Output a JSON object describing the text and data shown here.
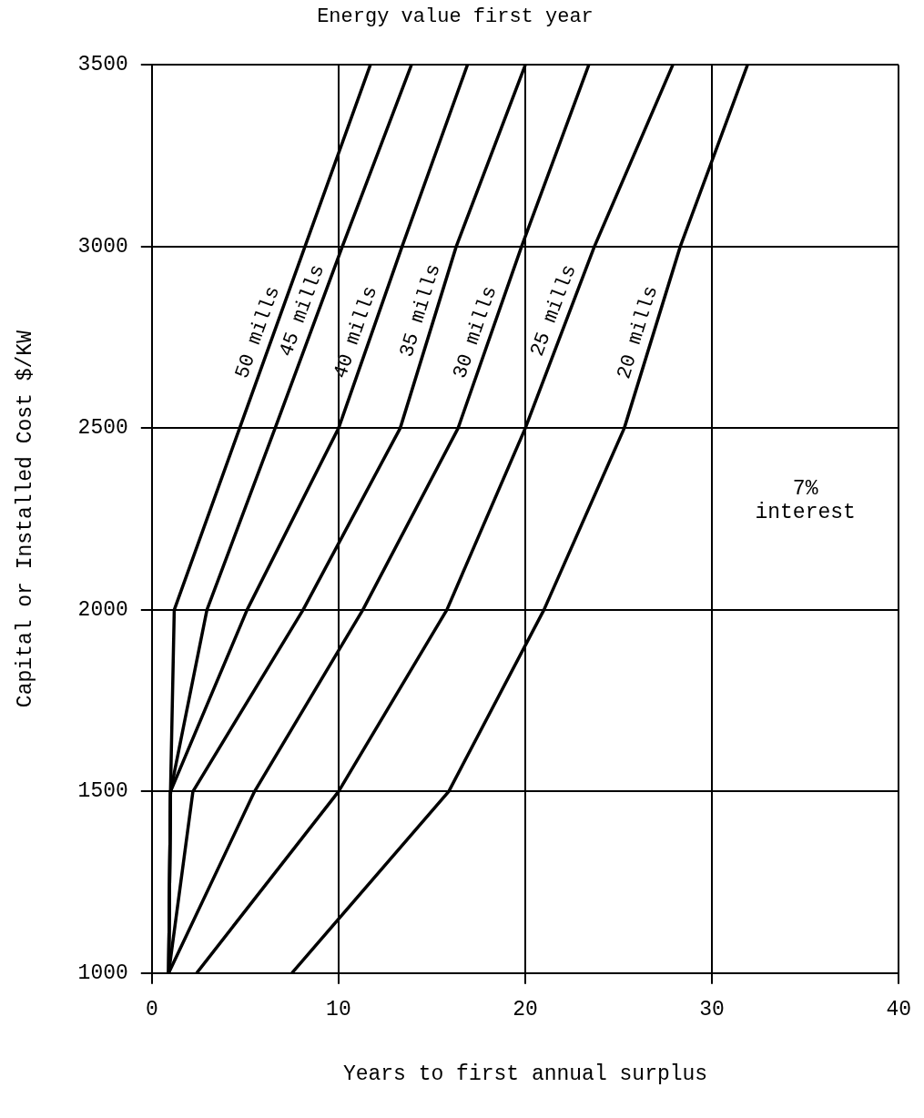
{
  "chart_data": {
    "type": "line",
    "title": "Energy value first year",
    "xlabel": "Years to first annual surplus",
    "ylabel": "Capital or Installed Cost $/KW",
    "xlim": [
      0,
      40
    ],
    "xticks": [
      0,
      10,
      20,
      30,
      40
    ],
    "ylim": [
      1000,
      3500
    ],
    "yticks": [
      1000,
      1500,
      2000,
      2500,
      3000,
      3500
    ],
    "grid": true,
    "legend": false,
    "marker": "none",
    "line_style": "solid",
    "annotations": [
      "7%\ninterest"
    ],
    "series": [
      {
        "name": "50 mills",
        "color": "#000000",
        "x": [
          0.9,
          1.0,
          1.2,
          4.7,
          8.2,
          11.7
        ],
        "values": [
          1000,
          1500,
          2000,
          2500,
          3000,
          3500
        ]
      },
      {
        "name": "45 mills",
        "color": "#000000",
        "x": [
          0.9,
          1.0,
          2.95,
          6.6,
          10.2,
          13.9
        ],
        "values": [
          1000,
          1500,
          2000,
          2500,
          3000,
          3500
        ]
      },
      {
        "name": "40 mills",
        "color": "#000000",
        "x": [
          0.9,
          1.0,
          5.1,
          10.0,
          13.4,
          16.9
        ],
        "values": [
          1000,
          1500,
          2000,
          2500,
          3000,
          3500
        ]
      },
      {
        "name": "35 mills",
        "color": "#000000",
        "x": [
          0.9,
          2.2,
          8.1,
          13.3,
          16.3,
          20.0
        ],
        "values": [
          1000,
          1500,
          2000,
          2500,
          3000,
          3500
        ]
      },
      {
        "name": "30 mills",
        "color": "#000000",
        "x": [
          0.9,
          5.5,
          11.3,
          16.4,
          19.8,
          23.4
        ],
        "values": [
          1000,
          1500,
          2000,
          2500,
          3000,
          3500
        ]
      },
      {
        "name": "25 mills",
        "color": "#000000",
        "x": [
          2.4,
          10.0,
          15.8,
          20.0,
          23.7,
          27.9
        ],
        "values": [
          1000,
          1500,
          2000,
          2500,
          3000,
          3500
        ]
      },
      {
        "name": "20 mills",
        "color": "#000000",
        "x": [
          7.5,
          15.9,
          21.0,
          25.3,
          28.3,
          31.9
        ],
        "values": [
          1000,
          1500,
          2000,
          2500,
          3000,
          3500
        ]
      }
    ]
  }
}
